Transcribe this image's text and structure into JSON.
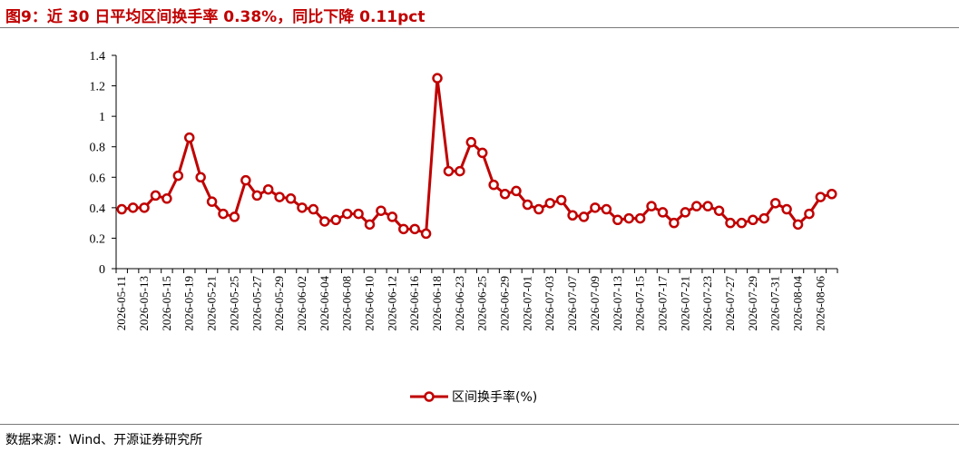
{
  "header": {
    "title": "图9：近 30 日平均区间换手率 0.38%，同比下降 0.11pct"
  },
  "footer": {
    "source": "数据来源：Wind、开源证券研究所"
  },
  "colors": {
    "title": "#c00000",
    "series": "#c00000",
    "axis": "#000000"
  },
  "chart_data": {
    "type": "line",
    "title": "",
    "xlabel": "",
    "ylabel": "",
    "ylim": [
      0,
      1.4
    ],
    "yticks": [
      "0",
      "0.2",
      "0.4",
      "0.6",
      "0.8",
      "1",
      "1.2",
      "1.4"
    ],
    "grid": false,
    "legend": "bottom-center",
    "marker": "hollow-circle",
    "x": [
      "2026-05-11",
      "2026-05-12",
      "2026-05-13",
      "2026-05-14",
      "2026-05-15",
      "2026-05-18",
      "2026-05-19",
      "2026-05-20",
      "2026-05-21",
      "2026-05-22",
      "2026-05-25",
      "2026-05-26",
      "2026-05-27",
      "2026-05-28",
      "2026-05-29",
      "2026-06-01",
      "2026-06-02",
      "2026-06-03",
      "2026-06-04",
      "2026-06-05",
      "2026-06-08",
      "2026-06-09",
      "2026-06-10",
      "2026-06-11",
      "2026-06-12",
      "2026-06-15",
      "2026-06-16",
      "2026-06-17",
      "2026-06-18",
      "2026-06-22",
      "2026-06-23",
      "2026-06-24",
      "2026-06-25",
      "2026-06-26",
      "2026-06-29",
      "2026-06-30",
      "2026-07-01",
      "2026-07-02",
      "2026-07-03",
      "2026-07-06",
      "2026-07-07",
      "2026-07-08",
      "2026-07-09",
      "2026-07-10",
      "2026-07-13",
      "2026-07-14",
      "2026-07-15",
      "2026-07-16",
      "2026-07-17",
      "2026-07-20",
      "2026-07-21",
      "2026-07-22",
      "2026-07-23",
      "2026-07-24",
      "2026-07-27",
      "2026-07-28",
      "2026-07-29",
      "2026-07-30",
      "2026-07-31",
      "2026-08-03",
      "2026-08-04",
      "2026-08-05",
      "2026-08-06",
      "2026-08-07"
    ],
    "xtick_labels": [
      "2026-05-11",
      "2026-05-13",
      "2026-05-15",
      "2026-05-19",
      "2026-05-21",
      "2026-05-25",
      "2026-05-27",
      "2026-05-29",
      "2026-06-02",
      "2026-06-04",
      "2026-06-08",
      "2026-06-10",
      "2026-06-12",
      "2026-06-16",
      "2026-06-18",
      "2026-06-23",
      "2026-06-25",
      "2026-06-29",
      "2026-07-01",
      "2026-07-03",
      "2026-07-07",
      "2026-07-09",
      "2026-07-13",
      "2026-07-15",
      "2026-07-17",
      "2026-07-21",
      "2026-07-23",
      "2026-07-27",
      "2026-07-29",
      "2026-07-31",
      "2026-08-04",
      "2026-08-06"
    ],
    "series": [
      {
        "name": "区间换手率(%)",
        "values": [
          0.39,
          0.4,
          0.4,
          0.48,
          0.46,
          0.61,
          0.86,
          0.6,
          0.44,
          0.36,
          0.34,
          0.58,
          0.48,
          0.52,
          0.47,
          0.46,
          0.4,
          0.39,
          0.31,
          0.32,
          0.36,
          0.36,
          0.29,
          0.38,
          0.34,
          0.26,
          0.26,
          0.23,
          1.25,
          0.64,
          0.64,
          0.83,
          0.76,
          0.55,
          0.49,
          0.51,
          0.42,
          0.39,
          0.43,
          0.45,
          0.35,
          0.34,
          0.4,
          0.39,
          0.32,
          0.33,
          0.33,
          0.41,
          0.37,
          0.3,
          0.37,
          0.41,
          0.41,
          0.38,
          0.3,
          0.3,
          0.32,
          0.33,
          0.43,
          0.39,
          0.29,
          0.36,
          0.47,
          0.49
        ]
      }
    ]
  }
}
